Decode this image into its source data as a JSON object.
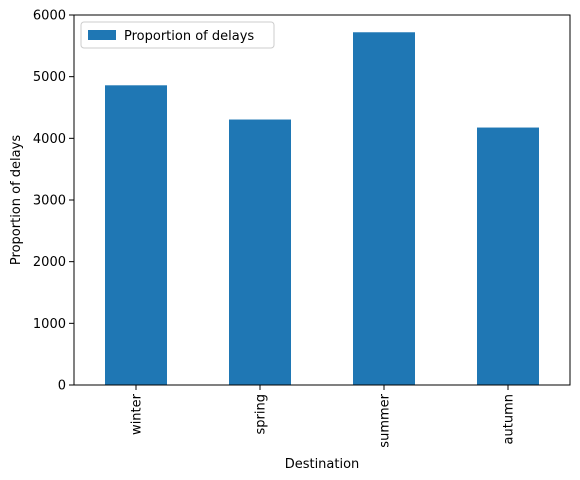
{
  "chart_data": {
    "type": "bar",
    "categories": [
      "winter",
      "spring",
      "summer",
      "autumn"
    ],
    "series": [
      {
        "name": "Proportion of delays",
        "values": [
          4860,
          4305,
          5720,
          4175
        ],
        "color": "#1f77b4"
      }
    ],
    "xlabel": "Destination",
    "ylabel": "Proportion of delays",
    "ylim": [
      0,
      6000
    ],
    "yticks": [
      0,
      1000,
      2000,
      3000,
      4000,
      5000,
      6000
    ],
    "grid": false,
    "legend_position": "top-left",
    "x_tick_rotation": "vertical"
  }
}
